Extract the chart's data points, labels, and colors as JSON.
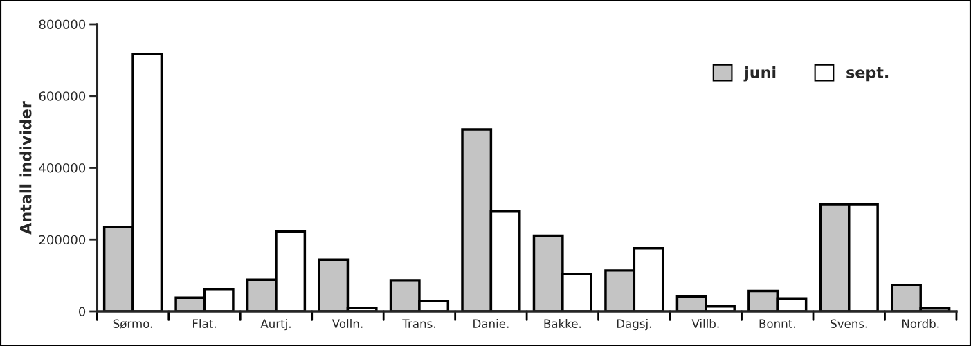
{
  "chart_data": {
    "type": "bar",
    "ylabel": "Antall individer",
    "categories": [
      "Sørmo.",
      "Flat.",
      "Aurtj.",
      "Volln.",
      "Trans.",
      "Danie.",
      "Bakke.",
      "Dagsj.",
      "Villb.",
      "Bonnt.",
      "Svens.",
      "Nordb."
    ],
    "series": [
      {
        "name": "juni",
        "color": "#c4c4c4",
        "values": [
          235000,
          38000,
          88000,
          144000,
          87000,
          507000,
          211000,
          114000,
          41000,
          57000,
          299000,
          73000
        ]
      },
      {
        "name": "sept.",
        "color": "#ffffff",
        "values": [
          717000,
          62000,
          222000,
          10000,
          29000,
          278000,
          104000,
          176000,
          14000,
          36000,
          299000,
          8000
        ]
      }
    ],
    "ylim": [
      0,
      800000
    ],
    "yticks": [
      0,
      200000,
      400000,
      600000,
      800000
    ],
    "grid": false,
    "legend": "top right"
  }
}
